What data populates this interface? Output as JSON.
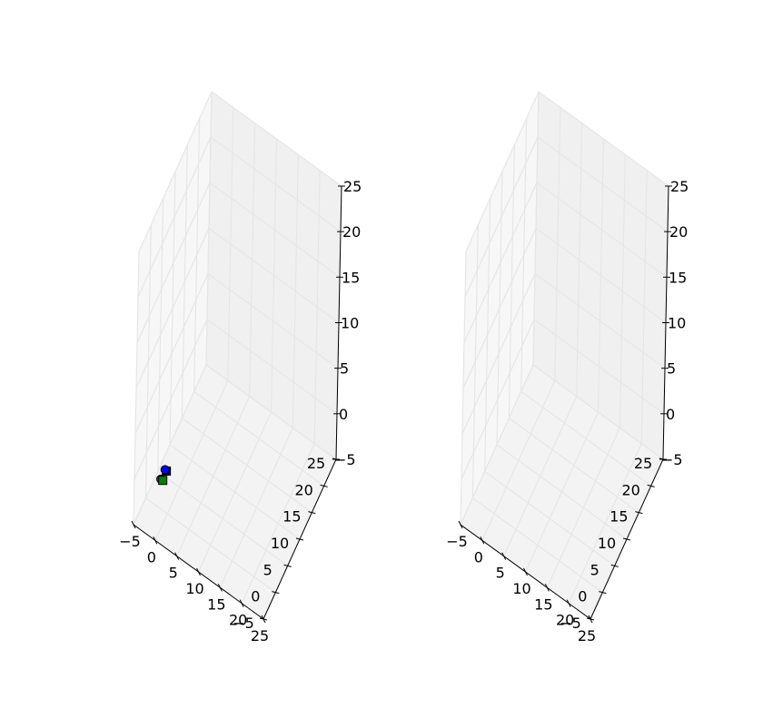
{
  "chart_data": [
    {
      "type": "scatter3d",
      "title": "",
      "xlim": [
        -5,
        25
      ],
      "ylim": [
        -5,
        25
      ],
      "zlim": [
        -5,
        25
      ],
      "xticks": [
        "−5",
        "0",
        "5",
        "10",
        "15",
        "20",
        "25"
      ],
      "yticks": [
        "−5",
        "0",
        "5",
        "10",
        "15",
        "20",
        "25"
      ],
      "zticks": [
        "−5",
        "0",
        "5",
        "10",
        "15",
        "20",
        "25"
      ],
      "grid": true,
      "pane_color": "#f2f2f2",
      "grid_color": "#e6e6e6",
      "series": [
        {
          "marker": "circle",
          "color": "#008000",
          "points": [
            {
              "x": -1.8,
              "y": 0.3,
              "z": -2.0
            }
          ]
        },
        {
          "marker": "square",
          "color": "#008000",
          "points": [
            {
              "x": -1.5,
              "y": 0.6,
              "z": -2.2
            }
          ]
        },
        {
          "marker": "square",
          "color": "#000000",
          "points": [
            {
              "x": -1.2,
              "y": 1.5,
              "z": -1.6
            }
          ]
        },
        {
          "marker": "circle",
          "color": "#0000ff",
          "points": [
            {
              "x": -1.4,
              "y": 1.3,
              "z": -1.4
            }
          ]
        }
      ]
    },
    {
      "type": "scatter3d",
      "title": "",
      "xlim": [
        -5,
        25
      ],
      "ylim": [
        -5,
        25
      ],
      "zlim": [
        -5,
        25
      ],
      "xticks": [
        "−5",
        "0",
        "5",
        "10",
        "15",
        "20",
        "25"
      ],
      "yticks": [
        "−5",
        "0",
        "5",
        "10",
        "15",
        "20",
        "25"
      ],
      "zticks": [
        "−5",
        "0",
        "5",
        "10",
        "15",
        "20",
        "25"
      ],
      "grid": true,
      "pane_color": "#f2f2f2",
      "grid_color": "#e6e6e6",
      "series": []
    }
  ]
}
